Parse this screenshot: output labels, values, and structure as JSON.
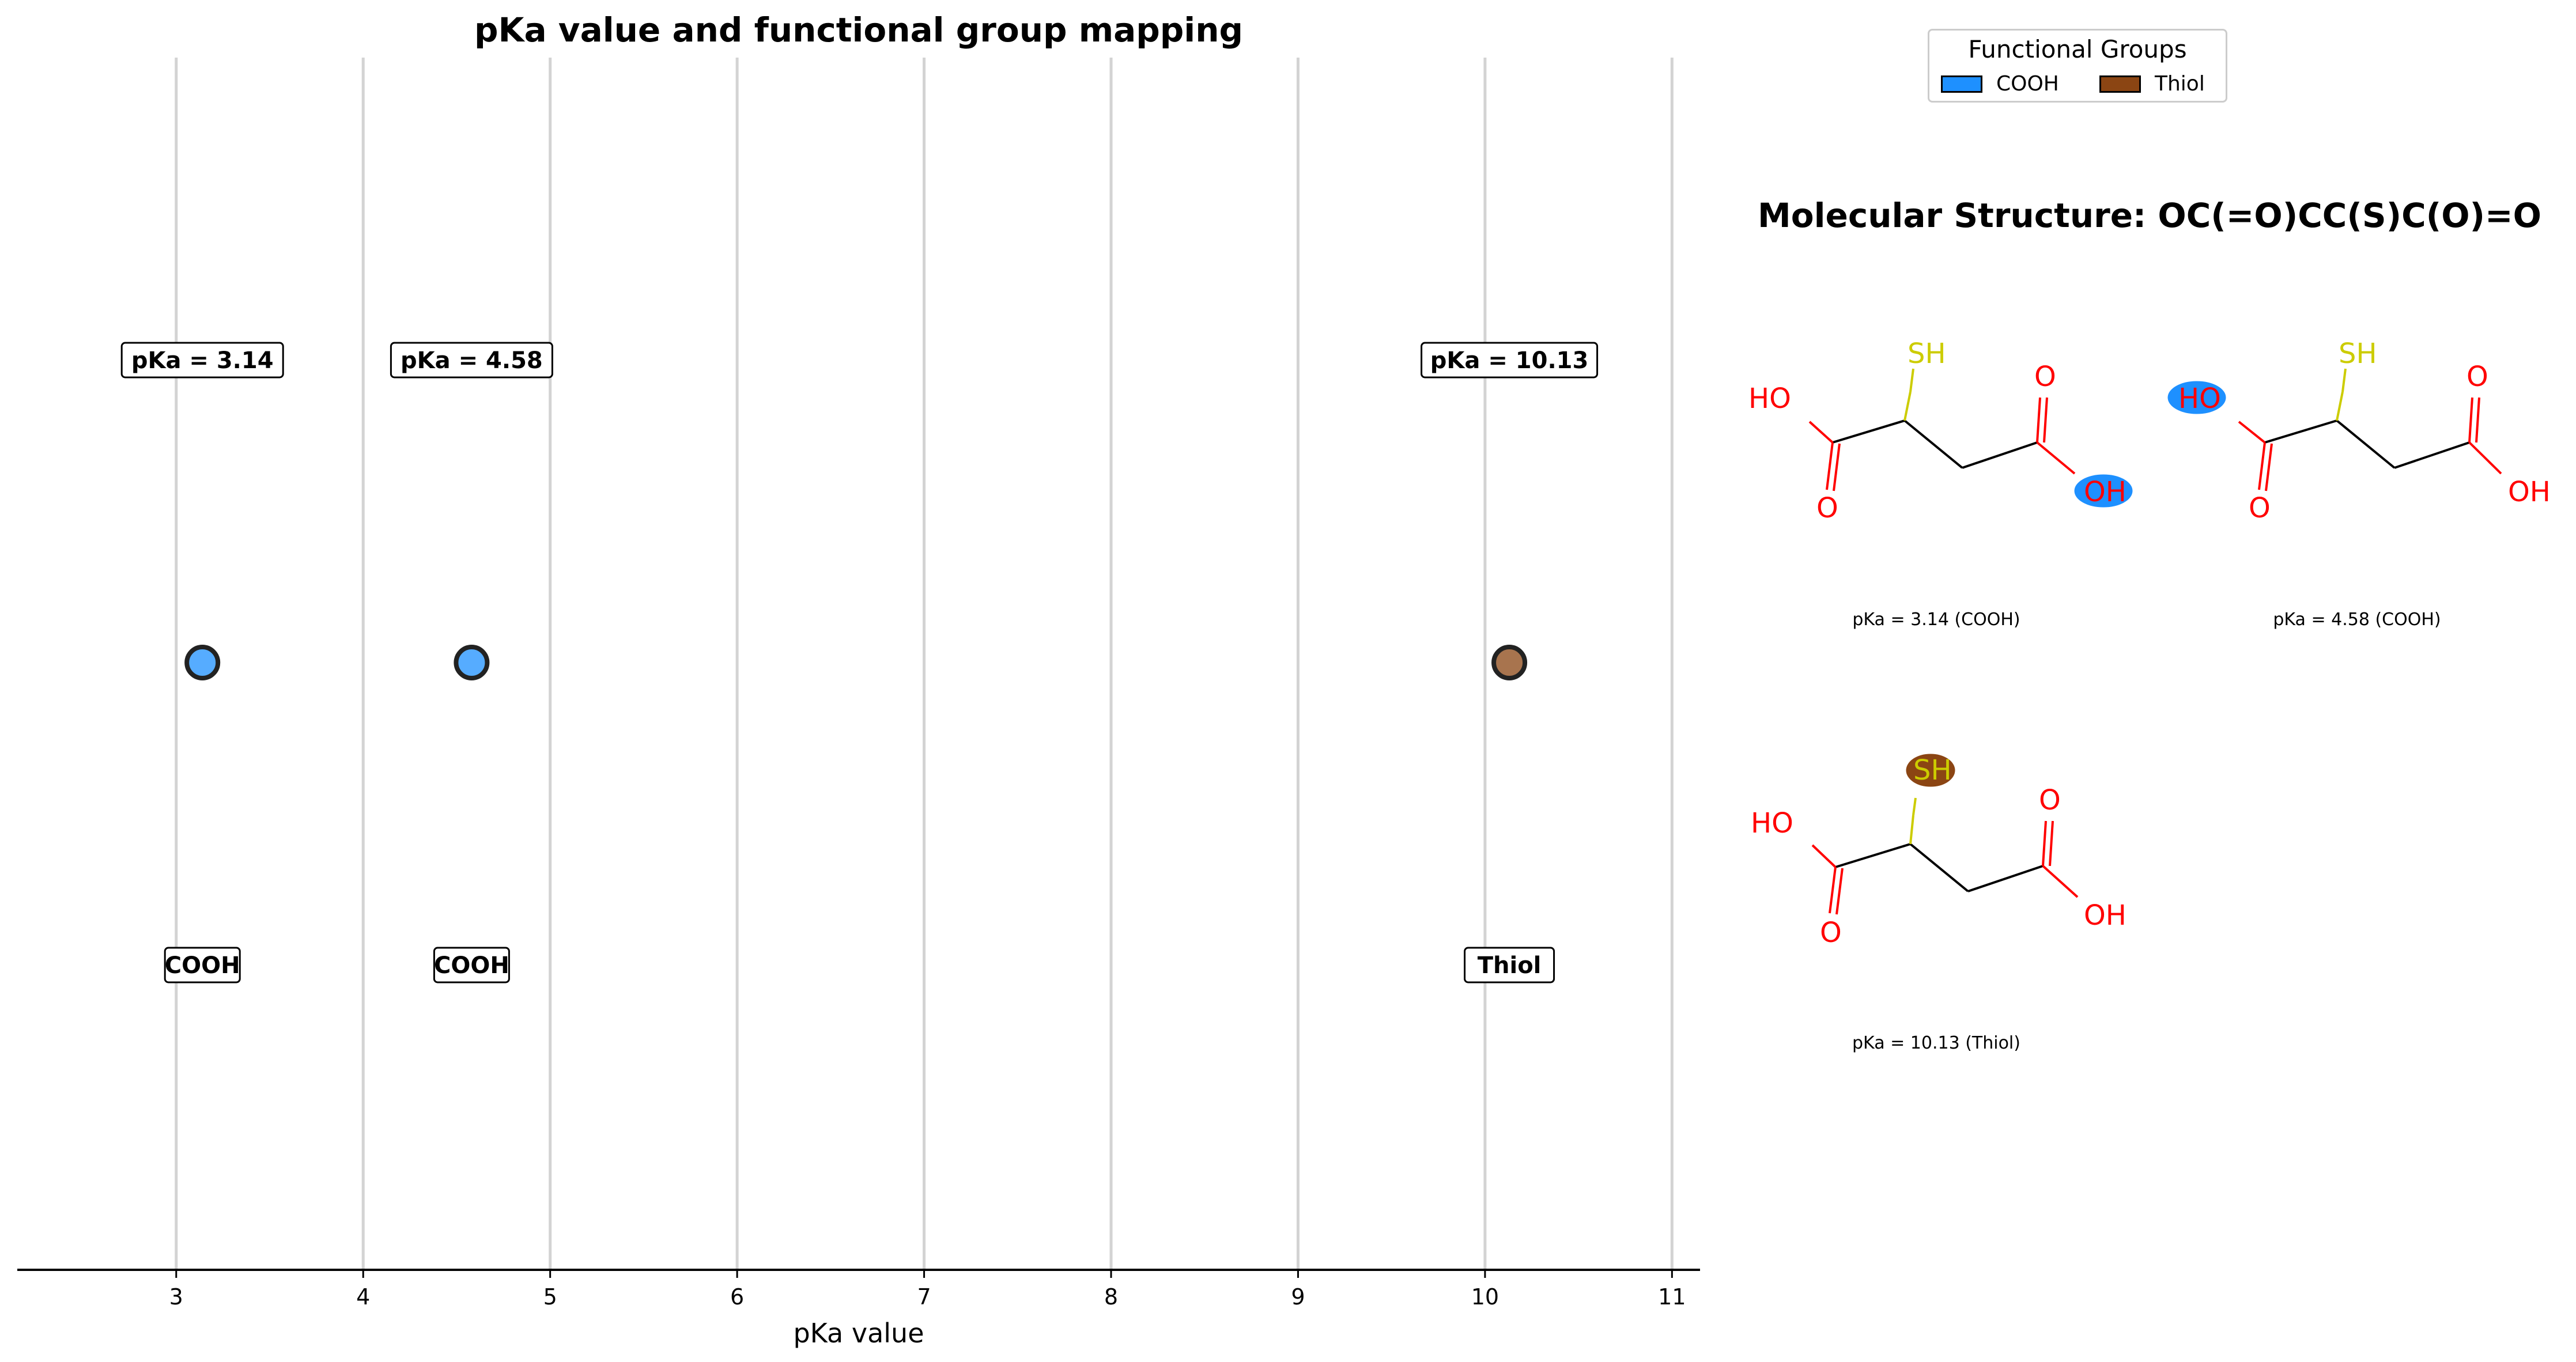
{
  "chart_data": {
    "type": "scatter",
    "title": "pKa value and functional group mapping",
    "xlabel": "pKa value",
    "ylabel": "",
    "xlim": [
      2.15,
      11.15
    ],
    "x_ticks": [
      "3",
      "4",
      "5",
      "6",
      "7",
      "8",
      "9",
      "10",
      "11"
    ],
    "grid": "vertical",
    "points": [
      {
        "x": 3.14,
        "group": "COOH",
        "pka_label": "pKa = 3.14",
        "color": "#1e90ff"
      },
      {
        "x": 4.58,
        "group": "COOH",
        "pka_label": "pKa = 4.58",
        "color": "#1e90ff"
      },
      {
        "x": 10.13,
        "group": "Thiol",
        "pka_label": "pKa = 10.13",
        "color": "#8b4513"
      }
    ],
    "legend": {
      "title": "Functional Groups",
      "placement": "top-right",
      "entries": [
        {
          "name": "COOH",
          "color": "#1e90ff"
        },
        {
          "name": "Thiol",
          "color": "#8b4513"
        }
      ]
    }
  },
  "molecule": {
    "title": "Molecular Structure: OC(=O)CC(S)C(O)=O",
    "atom_labels": {
      "oh": "OH",
      "ho": "HO",
      "o": "O",
      "sh": "SH"
    },
    "panels": [
      {
        "caption": "pKa = 3.14 (COOH)",
        "highlight": "right-oh",
        "highlight_color": "#1e90ff"
      },
      {
        "caption": "pKa = 4.58 (COOH)",
        "highlight": "left-ho",
        "highlight_color": "#1e90ff"
      },
      {
        "caption": "pKa = 10.13 (Thiol)",
        "highlight": "sh",
        "highlight_color": "#8b4513"
      }
    ]
  }
}
